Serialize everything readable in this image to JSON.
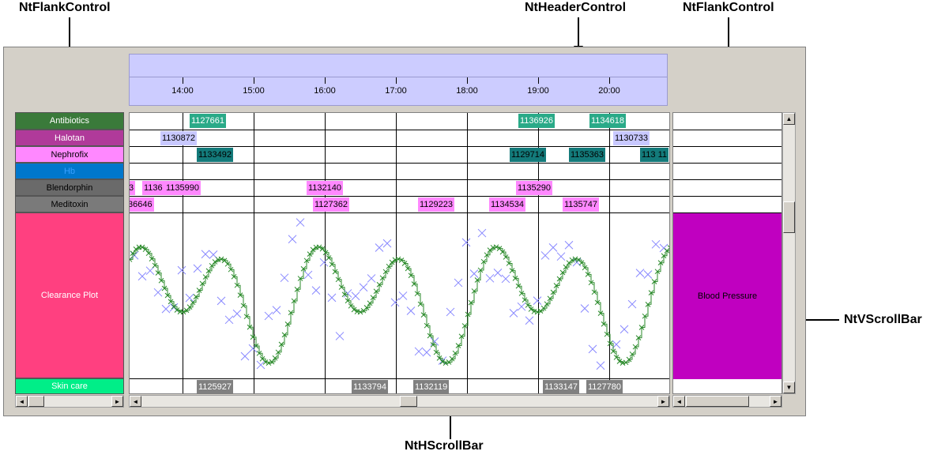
{
  "callouts": {
    "left_flank": "NtFlankControl",
    "header": "NtHeaderControl",
    "right_flank": "NtFlankControl",
    "hscroll": "NtHScrollBar",
    "vscroll": "NtVScrollBar"
  },
  "header": {
    "times": [
      "14:00",
      "15:00",
      "16:00",
      "17:00",
      "18:00",
      "19:00",
      "20:00"
    ]
  },
  "flank": {
    "rows": [
      {
        "label": "Antibiotics",
        "color": "#3a7a3a"
      },
      {
        "label": "Halotan",
        "color": "#b03a9a"
      },
      {
        "label": "Nephrofix",
        "color": "#ff88ff"
      },
      {
        "label": "Hb",
        "color": "#0077cc"
      },
      {
        "label": "Blendorphin",
        "color": "#6a6a6a"
      },
      {
        "label": "Meditoxin",
        "color": "#7a7a7a"
      },
      {
        "label": "Clearance Plot",
        "color": "#ff4080"
      },
      {
        "label": "Skin care",
        "color": "#00ee88"
      }
    ]
  },
  "right_flank": {
    "plot_label": "Blood Pressure",
    "plot_color": "#c000c0"
  },
  "events": [
    {
      "row": 0,
      "label": "1127661",
      "color": "#2aaa88"
    },
    {
      "row": 0,
      "label": "1136926",
      "color": "#2aaa88"
    },
    {
      "row": 0,
      "label": "1134618",
      "color": "#2aaa88"
    },
    {
      "row": 1,
      "label": "1130872",
      "color": "#c8c8ff"
    },
    {
      "row": 1,
      "label": "1130733",
      "color": "#c8c8ff"
    },
    {
      "row": 2,
      "label": "1133492",
      "color": "#137a7a"
    },
    {
      "row": 2,
      "label": "1129714",
      "color": "#137a7a"
    },
    {
      "row": 2,
      "label": "1135363",
      "color": "#137a7a"
    },
    {
      "row": 2,
      "label": "113 11",
      "color": "#137a7a"
    },
    {
      "row": 4,
      "label": "3",
      "color": "#ff88ff"
    },
    {
      "row": 4,
      "label": "1136",
      "color": "#ff88ff"
    },
    {
      "row": 4,
      "label": "1135990",
      "color": "#ff88ff"
    },
    {
      "row": 4,
      "label": "1132140",
      "color": "#ff88ff"
    },
    {
      "row": 4,
      "label": "1135290",
      "color": "#ff88ff"
    },
    {
      "row": 5,
      "label": "36646",
      "color": "#ff88ff"
    },
    {
      "row": 5,
      "label": "1127362",
      "color": "#ff88ff"
    },
    {
      "row": 5,
      "label": "1129223",
      "color": "#ff88ff"
    },
    {
      "row": 5,
      "label": "1134534",
      "color": "#ff88ff"
    },
    {
      "row": 5,
      "label": "1135747",
      "color": "#ff88ff"
    },
    {
      "row": 7,
      "label": "1125927",
      "color": "#808080"
    },
    {
      "row": 7,
      "label": "1133794",
      "color": "#808080"
    },
    {
      "row": 7,
      "label": "1132119",
      "color": "#808080"
    },
    {
      "row": 7,
      "label": "1133147",
      "color": "#808080"
    },
    {
      "row": 7,
      "label": "1127780",
      "color": "#808080"
    }
  ],
  "scrollbars": {
    "arrow_left": "◄",
    "arrow_right": "►",
    "arrow_up": "▲",
    "arrow_down": "▼"
  }
}
